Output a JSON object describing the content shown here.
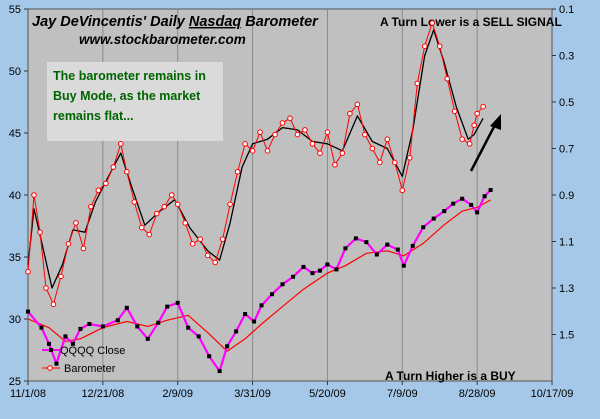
{
  "chart_data": {
    "type": "line",
    "title": "Jay DeVincentis' Daily Nasdaq Barometer",
    "title_underlined_word": "Nasdaq",
    "subtitle": "www.stockbarometer.com",
    "annotation_callout": "The barometer remains in Buy Mode, as the market remains flat...",
    "annotation_top_right": "A Turn Lower is a SELL SIGNAL",
    "annotation_bottom_right": "A Turn Higher is a BUY",
    "x_tick_labels": [
      "11/1/08",
      "12/21/08",
      "2/9/09",
      "3/31/09",
      "5/20/09",
      "7/9/09",
      "8/28/09",
      "10/17/09"
    ],
    "y_left_ticks": [
      25,
      30,
      35,
      40,
      45,
      50,
      55
    ],
    "y_left_lim": [
      25,
      55
    ],
    "y_right_ticks": [
      0.1,
      0.3,
      0.5,
      0.7,
      0.9,
      1.1,
      1.3,
      1.5
    ],
    "y_right_lim": [
      1.7,
      0.1
    ],
    "y_right_inverted": true,
    "grid": "vertical",
    "legend_position": "bottom-left",
    "colors": {
      "background": "#a6c8e8",
      "plot_area": "#c0c0c0",
      "qqqq": "#ff00ff",
      "qqqq_markers": "#000000",
      "qqqq_ma": "#ff0000",
      "barometer_markers": "#ff0000",
      "barometer_line": "#000000",
      "callout_text": "#006400",
      "annotation_text": "#000000"
    },
    "series": [
      {
        "name": "QQQQ Close",
        "axis": "left",
        "markers": "square",
        "points": [
          [
            "11/1/08",
            30.6
          ],
          [
            "11/10/08",
            29.3
          ],
          [
            "11/15/08",
            28.0
          ],
          [
            "11/20/08",
            26.4
          ],
          [
            "11/26/08",
            28.6
          ],
          [
            "12/1/08",
            28.0
          ],
          [
            "12/6/08",
            29.2
          ],
          [
            "12/12/08",
            29.6
          ],
          [
            "12/21/08",
            29.4
          ],
          [
            "12/31/08",
            29.9
          ],
          [
            "1/6/09",
            30.9
          ],
          [
            "1/13/09",
            29.4
          ],
          [
            "1/20/09",
            28.4
          ],
          [
            "1/27/09",
            29.7
          ],
          [
            "2/2/09",
            31.0
          ],
          [
            "2/9/09",
            31.3
          ],
          [
            "2/16/09",
            29.3
          ],
          [
            "2/23/09",
            28.6
          ],
          [
            "3/2/09",
            27.0
          ],
          [
            "3/9/09",
            25.8
          ],
          [
            "3/14/09",
            27.8
          ],
          [
            "3/20/09",
            29.0
          ],
          [
            "3/26/09",
            30.4
          ],
          [
            "4/1/09",
            29.8
          ],
          [
            "4/6/09",
            31.1
          ],
          [
            "4/13/09",
            32.0
          ],
          [
            "4/20/09",
            32.8
          ],
          [
            "4/27/09",
            33.4
          ],
          [
            "5/4/09",
            34.2
          ],
          [
            "5/10/09",
            33.7
          ],
          [
            "5/15/09",
            33.9
          ],
          [
            "5/20/09",
            34.4
          ],
          [
            "5/26/09",
            34.0
          ],
          [
            "6/1/09",
            35.7
          ],
          [
            "6/8/09",
            36.5
          ],
          [
            "6/15/09",
            36.2
          ],
          [
            "6/22/09",
            35.2
          ],
          [
            "6/29/09",
            36.0
          ],
          [
            "7/6/09",
            35.6
          ],
          [
            "7/10/09",
            34.3
          ],
          [
            "7/16/09",
            35.9
          ],
          [
            "7/23/09",
            37.4
          ],
          [
            "7/30/09",
            38.1
          ],
          [
            "8/6/09",
            38.7
          ],
          [
            "8/12/09",
            39.3
          ],
          [
            "8/18/09",
            39.7
          ],
          [
            "8/24/09",
            39.2
          ],
          [
            "8/28/09",
            38.6
          ],
          [
            "9/2/09",
            39.9
          ],
          [
            "9/6/09",
            40.4
          ]
        ]
      },
      {
        "name": "QQQQ moving average",
        "axis": "left",
        "markers": "none",
        "points": [
          [
            "11/1/08",
            30.0
          ],
          [
            "11/15/08",
            29.3
          ],
          [
            "11/26/08",
            28.2
          ],
          [
            "12/6/08",
            28.4
          ],
          [
            "12/21/08",
            29.3
          ],
          [
            "1/6/09",
            29.8
          ],
          [
            "1/20/09",
            29.4
          ],
          [
            "2/2/09",
            29.9
          ],
          [
            "2/16/09",
            30.3
          ],
          [
            "3/2/09",
            28.8
          ],
          [
            "3/14/09",
            27.4
          ],
          [
            "3/26/09",
            28.4
          ],
          [
            "4/6/09",
            29.6
          ],
          [
            "4/20/09",
            31.0
          ],
          [
            "5/4/09",
            32.4
          ],
          [
            "5/20/09",
            33.7
          ],
          [
            "6/1/09",
            34.3
          ],
          [
            "6/15/09",
            35.3
          ],
          [
            "6/29/09",
            35.5
          ],
          [
            "7/10/09",
            35.1
          ],
          [
            "7/23/09",
            36.1
          ],
          [
            "8/6/09",
            37.6
          ],
          [
            "8/18/09",
            38.7
          ],
          [
            "8/28/09",
            39.0
          ],
          [
            "9/6/09",
            39.6
          ]
        ]
      },
      {
        "name": "Barometer",
        "axis": "right",
        "markers": "circle",
        "points": [
          [
            "11/1/08",
            1.23
          ],
          [
            "11/5/08",
            0.9
          ],
          [
            "11/9/08",
            1.06
          ],
          [
            "11/13/08",
            1.3
          ],
          [
            "11/18/08",
            1.37
          ],
          [
            "11/23/08",
            1.25
          ],
          [
            "11/28/08",
            1.11
          ],
          [
            "12/3/08",
            1.02
          ],
          [
            "12/8/08",
            1.13
          ],
          [
            "12/13/08",
            0.95
          ],
          [
            "12/18/08",
            0.88
          ],
          [
            "12/23/08",
            0.85
          ],
          [
            "12/28/08",
            0.78
          ],
          [
            "1/2/09",
            0.68
          ],
          [
            "1/6/09",
            0.8
          ],
          [
            "1/11/09",
            0.93
          ],
          [
            "1/16/09",
            1.04
          ],
          [
            "1/21/09",
            1.07
          ],
          [
            "1/26/09",
            0.98
          ],
          [
            "1/31/09",
            0.95
          ],
          [
            "2/5/09",
            0.9
          ],
          [
            "2/9/09",
            0.94
          ],
          [
            "2/14/09",
            1.02
          ],
          [
            "2/19/09",
            1.11
          ],
          [
            "2/24/09",
            1.09
          ],
          [
            "3/1/09",
            1.16
          ],
          [
            "3/6/09",
            1.19
          ],
          [
            "3/11/09",
            1.09
          ],
          [
            "3/16/09",
            0.94
          ],
          [
            "3/21/09",
            0.8
          ],
          [
            "3/26/09",
            0.68
          ],
          [
            "3/31/09",
            0.71
          ],
          [
            "4/5/09",
            0.63
          ],
          [
            "4/10/09",
            0.71
          ],
          [
            "4/15/09",
            0.64
          ],
          [
            "4/20/09",
            0.59
          ],
          [
            "4/25/09",
            0.57
          ],
          [
            "4/30/09",
            0.64
          ],
          [
            "5/5/09",
            0.62
          ],
          [
            "5/10/09",
            0.68
          ],
          [
            "5/15/09",
            0.72
          ],
          [
            "5/20/09",
            0.63
          ],
          [
            "5/25/09",
            0.77
          ],
          [
            "5/30/09",
            0.72
          ],
          [
            "6/4/09",
            0.55
          ],
          [
            "6/9/09",
            0.51
          ],
          [
            "6/14/09",
            0.64
          ],
          [
            "6/19/09",
            0.7
          ],
          [
            "6/24/09",
            0.76
          ],
          [
            "6/29/09",
            0.66
          ],
          [
            "7/4/09",
            0.76
          ],
          [
            "7/9/09",
            0.88
          ],
          [
            "7/14/09",
            0.74
          ],
          [
            "7/19/09",
            0.42
          ],
          [
            "7/24/09",
            0.26
          ],
          [
            "7/29/09",
            0.16
          ],
          [
            "8/3/09",
            0.26
          ],
          [
            "8/8/09",
            0.4
          ],
          [
            "8/13/09",
            0.54
          ],
          [
            "8/18/09",
            0.66
          ],
          [
            "8/23/09",
            0.68
          ],
          [
            "8/26/09",
            0.6
          ],
          [
            "8/28/09",
            0.55
          ],
          [
            "9/1/09",
            0.52
          ]
        ]
      },
      {
        "name": "Barometer moving average",
        "axis": "right",
        "markers": "none",
        "points": [
          [
            "11/1/08",
            1.2
          ],
          [
            "11/5/08",
            0.96
          ],
          [
            "11/10/08",
            1.1
          ],
          [
            "11/17/08",
            1.3
          ],
          [
            "11/24/08",
            1.2
          ],
          [
            "12/1/08",
            1.05
          ],
          [
            "12/9/08",
            1.06
          ],
          [
            "12/16/08",
            0.93
          ],
          [
            "12/24/08",
            0.83
          ],
          [
            "1/2/09",
            0.72
          ],
          [
            "1/9/09",
            0.86
          ],
          [
            "1/18/09",
            1.03
          ],
          [
            "1/28/09",
            0.97
          ],
          [
            "2/7/09",
            0.92
          ],
          [
            "2/17/09",
            1.04
          ],
          [
            "3/1/09",
            1.14
          ],
          [
            "3/9/09",
            1.18
          ],
          [
            "3/16/09",
            1.02
          ],
          [
            "3/24/09",
            0.78
          ],
          [
            "3/31/09",
            0.68
          ],
          [
            "4/10/09",
            0.66
          ],
          [
            "4/20/09",
            0.61
          ],
          [
            "4/30/09",
            0.62
          ],
          [
            "5/10/09",
            0.67
          ],
          [
            "5/20/09",
            0.68
          ],
          [
            "5/30/09",
            0.71
          ],
          [
            "6/9/09",
            0.56
          ],
          [
            "6/19/09",
            0.67
          ],
          [
            "6/29/09",
            0.7
          ],
          [
            "7/9/09",
            0.82
          ],
          [
            "7/16/09",
            0.62
          ],
          [
            "7/24/09",
            0.3
          ],
          [
            "7/30/09",
            0.19
          ],
          [
            "8/6/09",
            0.33
          ],
          [
            "8/14/09",
            0.52
          ],
          [
            "8/22/09",
            0.66
          ],
          [
            "8/26/09",
            0.64
          ],
          [
            "9/1/09",
            0.57
          ]
        ]
      }
    ]
  }
}
